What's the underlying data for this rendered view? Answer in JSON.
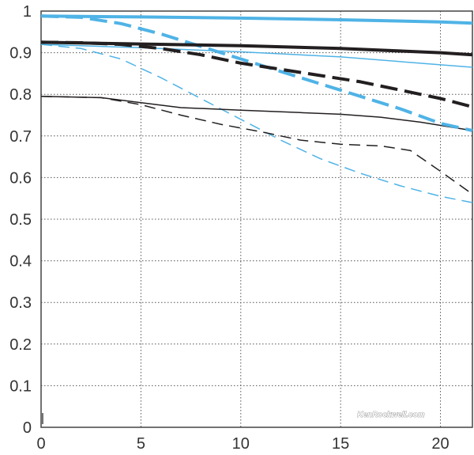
{
  "chart_data": {
    "type": "line",
    "title": "",
    "xlabel": "",
    "ylabel": "",
    "xlim": [
      0,
      21.6
    ],
    "ylim": [
      0,
      1
    ],
    "x_ticks": [
      "0",
      "5",
      "10",
      "15",
      "20"
    ],
    "y_ticks": [
      "0",
      "0.1",
      "0.2",
      "0.3",
      "0.4",
      "0.5",
      "0.6",
      "0.7",
      "0.8",
      "0.9",
      "1"
    ],
    "grid": true,
    "legend": "none",
    "colors": {
      "blue": "#4fb3e6",
      "black": "#231f20"
    },
    "series": [
      {
        "name": "blue-thick-solid",
        "color": "#4fb3e6",
        "weight": "thick",
        "dash": "solid",
        "x": [
          0,
          5,
          10,
          15,
          20,
          21.6
        ],
        "y": [
          0.988,
          0.986,
          0.983,
          0.979,
          0.974,
          0.971
        ]
      },
      {
        "name": "blue-thick-dashed",
        "color": "#4fb3e6",
        "weight": "thick",
        "dash": "dashed",
        "x": [
          0,
          2,
          4,
          6,
          8,
          10,
          12,
          14,
          16,
          18,
          20,
          21.6
        ],
        "y": [
          0.988,
          0.985,
          0.97,
          0.945,
          0.915,
          0.885,
          0.855,
          0.825,
          0.795,
          0.765,
          0.73,
          0.713
        ]
      },
      {
        "name": "blue-thin-solid",
        "color": "#4fb3e6",
        "weight": "thin",
        "dash": "solid",
        "x": [
          0,
          5,
          10,
          15,
          20,
          21.6
        ],
        "y": [
          0.92,
          0.912,
          0.902,
          0.89,
          0.871,
          0.865
        ]
      },
      {
        "name": "blue-thin-dashed",
        "color": "#4fb3e6",
        "weight": "thin",
        "dash": "dashed",
        "x": [
          0,
          2,
          4,
          6,
          8,
          10,
          12,
          14,
          16,
          18,
          20,
          21.6
        ],
        "y": [
          0.92,
          0.91,
          0.885,
          0.84,
          0.79,
          0.74,
          0.69,
          0.645,
          0.61,
          0.58,
          0.555,
          0.54
        ]
      },
      {
        "name": "black-thick-solid",
        "color": "#231f20",
        "weight": "thick",
        "dash": "solid",
        "x": [
          0,
          5,
          10,
          15,
          20,
          21.6
        ],
        "y": [
          0.925,
          0.921,
          0.917,
          0.91,
          0.9,
          0.895
        ]
      },
      {
        "name": "black-thick-dashed",
        "color": "#231f20",
        "weight": "thick",
        "dash": "dashed",
        "x": [
          0,
          2,
          4,
          6,
          8,
          10,
          12,
          14,
          16,
          18,
          20,
          21.6
        ],
        "y": [
          0.925,
          0.924,
          0.92,
          0.91,
          0.895,
          0.875,
          0.86,
          0.845,
          0.83,
          0.81,
          0.79,
          0.77
        ]
      },
      {
        "name": "black-thin-solid",
        "color": "#231f20",
        "weight": "thin",
        "dash": "solid",
        "x": [
          0,
          3,
          5,
          7,
          10,
          13,
          15,
          17,
          19,
          21.6
        ],
        "y": [
          0.795,
          0.792,
          0.78,
          0.768,
          0.762,
          0.756,
          0.752,
          0.745,
          0.733,
          0.713
        ]
      },
      {
        "name": "black-thin-dashed",
        "color": "#231f20",
        "weight": "thin",
        "dash": "dashed",
        "x": [
          0,
          3,
          5,
          7,
          9,
          11,
          13,
          15,
          17,
          18.5,
          20,
          21.6
        ],
        "y": [
          0.795,
          0.792,
          0.775,
          0.75,
          0.728,
          0.71,
          0.69,
          0.68,
          0.676,
          0.665,
          0.615,
          0.56
        ]
      }
    ]
  },
  "watermark": "KenRockwell.com"
}
